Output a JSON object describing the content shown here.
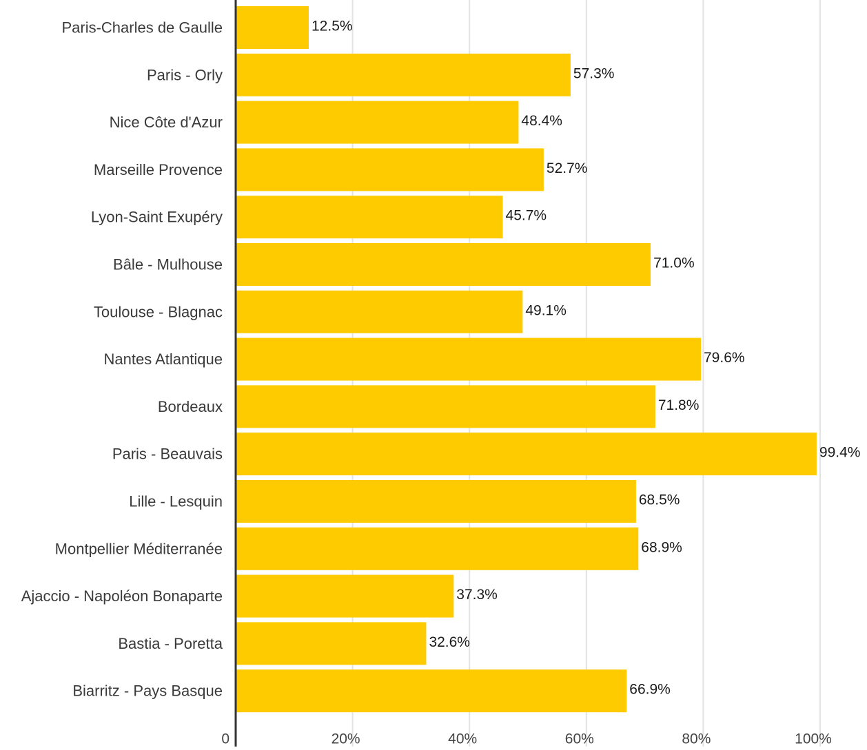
{
  "chart_data": {
    "type": "bar",
    "orientation": "horizontal",
    "categories": [
      "Paris-Charles de Gaulle",
      "Paris - Orly",
      "Nice Côte d'Azur",
      "Marseille Provence",
      "Lyon-Saint Exupéry",
      "Bâle - Mulhouse",
      "Toulouse - Blagnac",
      "Nantes Atlantique",
      "Bordeaux",
      "Paris - Beauvais",
      "Lille - Lesquin",
      "Montpellier Méditerranée",
      "Ajaccio - Napoléon Bonaparte",
      "Bastia - Poretta",
      "Biarritz - Pays Basque"
    ],
    "values": [
      12.5,
      57.3,
      48.4,
      52.7,
      45.7,
      71.0,
      49.1,
      79.6,
      71.8,
      99.4,
      68.5,
      68.9,
      37.3,
      32.6,
      66.9
    ],
    "value_labels": [
      "12.5%",
      "57.3%",
      "48.4%",
      "52.7%",
      "45.7%",
      "71.0%",
      "49.1%",
      "79.6%",
      "71.8%",
      "99.4%",
      "68.5%",
      "68.9%",
      "37.3%",
      "32.6%",
      "66.9%"
    ],
    "xlim": [
      0,
      100
    ],
    "x_ticks": [
      0,
      20,
      40,
      60,
      80,
      100
    ],
    "x_tick_labels": [
      "0",
      "20%",
      "40%",
      "60%",
      "80%",
      "100%"
    ],
    "grid": true,
    "legend": "none",
    "bar_color": "#fecb00",
    "grid_color": "#e3e3e3",
    "axis_color": "#333333"
  }
}
